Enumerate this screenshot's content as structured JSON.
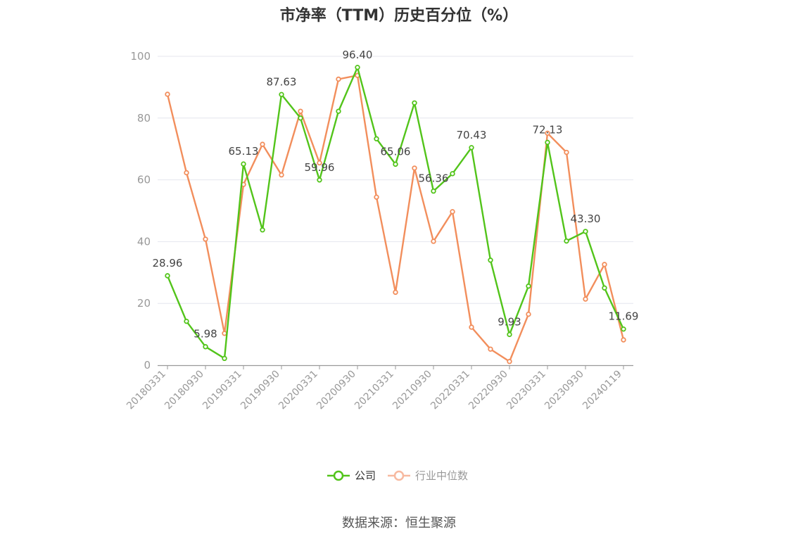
{
  "chart_data": {
    "type": "line",
    "title": "市净率（TTM）历史百分位（%）",
    "xlabel": "",
    "ylabel": "",
    "ylim": [
      0,
      100
    ],
    "yticks": [
      "0",
      "20",
      "40",
      "60",
      "80",
      "100"
    ],
    "grid": true,
    "legend_position": "bottom-center",
    "tick_labels": [
      "20180331",
      "20180930",
      "20190331",
      "20190930",
      "20200331",
      "20200930",
      "20210331",
      "20210930",
      "20220331",
      "20220930",
      "20230331",
      "20230930",
      "20240119"
    ],
    "x": [
      "20180331",
      "20180630",
      "20180930",
      "20181231",
      "20190331",
      "20190630",
      "20190930",
      "20191231",
      "20200331",
      "20200630",
      "20200930",
      "20201231",
      "20210331",
      "20210630",
      "20210930",
      "20211231",
      "20220331",
      "20220630",
      "20220930",
      "20221231",
      "20230331",
      "20230630",
      "20230930",
      "20231231",
      "20240119"
    ],
    "series": [
      {
        "name": "公司",
        "color": "#52c41a",
        "values": [
          28.96,
          14.2,
          5.98,
          2.2,
          65.13,
          43.8,
          87.63,
          80.0,
          59.96,
          82.2,
          96.4,
          73.3,
          65.06,
          84.9,
          56.36,
          62.0,
          70.43,
          34.0,
          9.93,
          25.6,
          72.13,
          40.2,
          43.3,
          25.0,
          11.69
        ],
        "data_labels": [
          "28.96",
          "",
          "5.98",
          "",
          "65.13",
          "",
          "87.63",
          "",
          "59.96",
          "",
          "96.40",
          "",
          "65.06",
          "",
          "56.36",
          "",
          "70.43",
          "",
          "9.93",
          "",
          "72.13",
          "",
          "43.30",
          "",
          "11.69"
        ]
      },
      {
        "name": "行业中位数",
        "color": "#f28e5c",
        "values": [
          87.7,
          62.3,
          40.8,
          10.3,
          58.5,
          71.5,
          61.6,
          82.2,
          65.5,
          92.6,
          93.8,
          54.4,
          23.6,
          63.8,
          40.1,
          49.7,
          12.3,
          5.2,
          1.2,
          16.5,
          75.1,
          68.9,
          21.4,
          32.6,
          8.2
        ]
      }
    ]
  },
  "legend": {
    "items": [
      "公司",
      "行业中位数"
    ]
  },
  "source": "数据来源：恒生聚源"
}
